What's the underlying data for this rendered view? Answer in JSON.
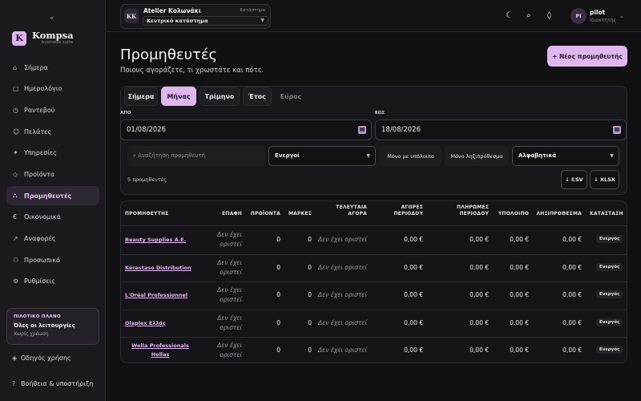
{
  "sidebar": {
    "collapse": "«",
    "brand_name": "Kompsa",
    "brand_sub": "business suite",
    "logo_letter": "K",
    "items": [
      {
        "icon": "⌂",
        "label": "Σήμερα"
      },
      {
        "icon": "▢",
        "label": "Ημερολόγιο"
      },
      {
        "icon": "◷",
        "label": "Ραντεβού"
      },
      {
        "icon": "☺",
        "label": "Πελάτες"
      },
      {
        "icon": "✦",
        "label": "Υπηρεσίες"
      },
      {
        "icon": "◇",
        "label": "Προϊόντα"
      },
      {
        "icon": "⛬",
        "label": "Προμηθευτές"
      },
      {
        "icon": "€",
        "label": "Οικονομικά"
      },
      {
        "icon": "↗",
        "label": "Αναφορές"
      },
      {
        "icon": "⚇",
        "label": "Προσωπικό"
      },
      {
        "icon": "⚙",
        "label": "Ρυθμίσεις"
      }
    ],
    "pilot": {
      "title": "ΠΙΛΟΤΙΚΟ ΠΛΑΝΟ",
      "main": "Όλες οι λειτουργίες",
      "sub": "Χωρίς χρέωση"
    },
    "guide": "Οδηγός χρήσης",
    "help": "Βοήθεια & υποστήριξη"
  },
  "topbar": {
    "store_initials": "KK",
    "store_name": "Atelier Κολωνάκι",
    "store_tag": "Κατάστημα",
    "store_select": "Κεντρικό κατάστημα",
    "user_initials": "PI",
    "user_name": "pilot",
    "user_role": "Ιδιοκτήτης"
  },
  "page": {
    "title": "Προμηθευτές",
    "subtitle": "Ποιους αγοράζετε, τι χρωστάτε και πότε.",
    "new_button": "+ Νέος προμηθευτής"
  },
  "filters": {
    "tabs": [
      "Σήμερα",
      "Μήνας",
      "Τρίμηνο",
      "Έτος",
      "Εύρος"
    ],
    "from_label": "ΑΠΟ",
    "to_label": "ΕΩΣ",
    "from_date": "01/08/2026",
    "to_date": "18/08/2026",
    "search_placeholder": "⌕  Αναζήτηση προμηθευτή",
    "status_select": "Ενεργοί",
    "btn_balance": "Μόνο με υπόλοιπο",
    "btn_overdue": "Μόνο ληξιπρόθεσμα",
    "sort_select": "Αλφαβητικά",
    "count": "5 προμηθευτές",
    "csv": "↓ CSV",
    "xlsx": "↓ XLSX"
  },
  "table": {
    "headers": [
      "ΠΡΟΜΗΘΕΥΤΗΣ",
      "ΕΠΑΦΗ",
      "ΠΡΟΪΟΝΤΑ",
      "ΜΑΡΚΕΣ",
      "ΤΕΛΕΥΤΑΙΑ|ΑΓΟΡΑ",
      "ΑΓΟΡΕΣ|ΠΕΡΙΟΔΟΥ",
      "ΠΛΗΡΩΜΕΣ|ΠΕΡΙΟΔΟΥ",
      "ΥΠΟΛΟΙΠΟ",
      "ΛΗΞΙΠΡΟΘΕΣΜΑ",
      "ΚΑΤΑΣΤΑΣΗ"
    ],
    "rows": [
      {
        "name": "Beauty Supplies Α.Ε.",
        "contact": "Δεν έχει|οριστεί",
        "products": "0",
        "brands": "0",
        "last": "Δεν έχει οριστεί",
        "purchases": "0,00 €",
        "payments": "0,00 €",
        "balance": "0,00 €",
        "overdue": "0,00 €",
        "status": "Ενεργός"
      },
      {
        "name": "Kérastase Distribution",
        "contact": "Δεν έχει|οριστεί",
        "products": "0",
        "brands": "0",
        "last": "Δεν έχει οριστεί",
        "purchases": "0,00 €",
        "payments": "0,00 €",
        "balance": "0,00 €",
        "overdue": "0,00 €",
        "status": "Ενεργός"
      },
      {
        "name": "L'Oréal Professionnel",
        "contact": "Δεν έχει|οριστεί",
        "products": "0",
        "brands": "0",
        "last": "Δεν έχει οριστεί",
        "purchases": "0,00 €",
        "payments": "0,00 €",
        "balance": "0,00 €",
        "overdue": "0,00 €",
        "status": "Ενεργός"
      },
      {
        "name": "Olaplex Ελλάς",
        "contact": "Δεν έχει|οριστεί",
        "products": "0",
        "brands": "0",
        "last": "Δεν έχει οριστεί",
        "purchases": "0,00 €",
        "payments": "0,00 €",
        "balance": "0,00 €",
        "overdue": "0,00 €",
        "status": "Ενεργός"
      },
      {
        "name": "Wella Professionals|Hellas",
        "contact": "Δεν έχει|οριστεί",
        "products": "0",
        "brands": "0",
        "last": "Δεν έχει οριστεί",
        "purchases": "0,00 €",
        "payments": "0,00 €",
        "balance": "0,00 €",
        "overdue": "0,00 €",
        "status": "Ενεργός"
      }
    ]
  }
}
